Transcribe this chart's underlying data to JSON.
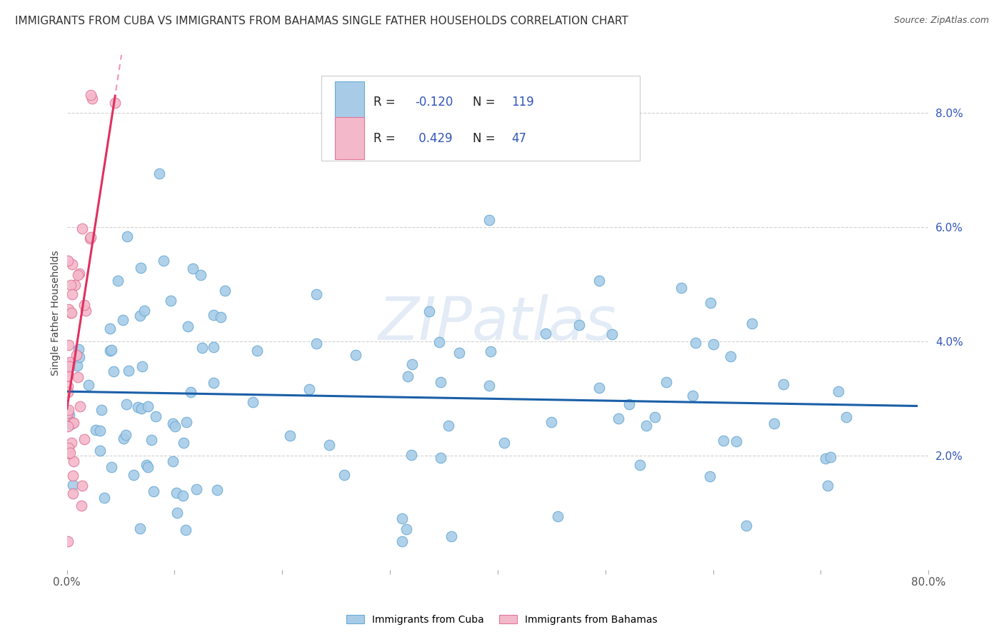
{
  "title": "IMMIGRANTS FROM CUBA VS IMMIGRANTS FROM BAHAMAS SINGLE FATHER HOUSEHOLDS CORRELATION CHART",
  "source": "Source: ZipAtlas.com",
  "ylabel": "Single Father Households",
  "xlim": [
    0.0,
    0.8
  ],
  "ylim": [
    0.0,
    0.09
  ],
  "yticks": [
    0.02,
    0.04,
    0.06,
    0.08
  ],
  "ytick_labels": [
    "2.0%",
    "4.0%",
    "6.0%",
    "8.0%"
  ],
  "xticks": [
    0.0,
    0.1,
    0.2,
    0.3,
    0.4,
    0.5,
    0.6,
    0.7,
    0.8
  ],
  "xtick_labels": [
    "0.0%",
    "",
    "",
    "",
    "",
    "",
    "",
    "",
    "80.0%"
  ],
  "cuba_color": "#a8cce8",
  "cuba_edge_color": "#6aaad4",
  "bahamas_color": "#f4b8cb",
  "bahamas_edge_color": "#e07898",
  "trendline_cuba_color": "#1a5fa8",
  "trendline_bahamas_color": "#e03060",
  "R_cuba": -0.12,
  "N_cuba": 119,
  "R_bahamas": 0.429,
  "N_bahamas": 47,
  "legend_color": "#3355bb",
  "watermark": "ZIPatlas",
  "background_color": "#ffffff",
  "grid_color": "#cccccc",
  "title_fontsize": 11,
  "axis_fontsize": 10,
  "legend_fontsize": 12
}
